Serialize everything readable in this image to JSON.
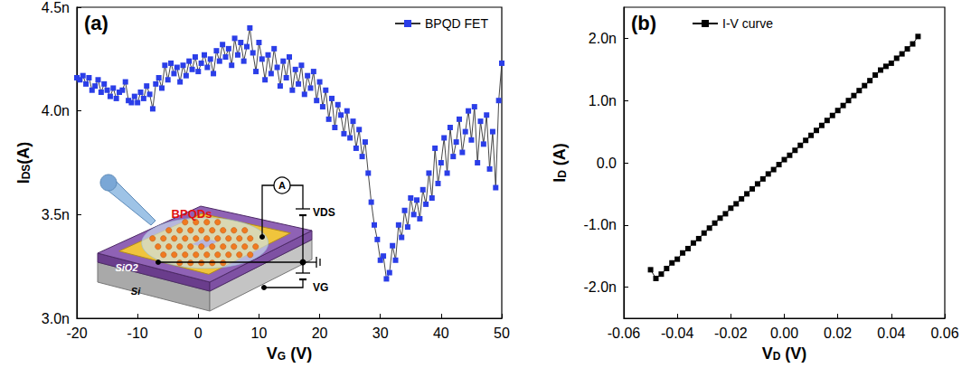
{
  "chart_data": [
    {
      "type": "line",
      "title": "(a)",
      "xlabel": [
        "V",
        "G",
        " (V)"
      ],
      "ylabel": [
        "I",
        "DS",
        "(A)"
      ],
      "x": [
        -20,
        -19.5,
        -19,
        -18.5,
        -18,
        -17.5,
        -17,
        -16.5,
        -16,
        -15.5,
        -15,
        -14.5,
        -14,
        -13.5,
        -13,
        -12.5,
        -12,
        -11.5,
        -11,
        -10.5,
        -10,
        -9.5,
        -9,
        -8.5,
        -8,
        -7.5,
        -7,
        -6.5,
        -6,
        -5.5,
        -5,
        -4.5,
        -4,
        -3.5,
        -3,
        -2.5,
        -2,
        -1.5,
        -1,
        -0.5,
        0,
        0.5,
        1,
        1.5,
        2,
        2.5,
        3,
        3.5,
        4,
        4.5,
        5,
        5.5,
        6,
        6.5,
        7,
        7.5,
        8,
        8.5,
        9,
        9.5,
        10,
        10.5,
        11,
        11.5,
        12,
        12.5,
        13,
        13.5,
        14,
        14.5,
        15,
        15.5,
        16,
        16.5,
        17,
        17.5,
        18,
        18.5,
        19,
        19.5,
        20,
        20.5,
        21,
        21.5,
        22,
        22.5,
        23,
        23.5,
        24,
        24.5,
        25,
        25.5,
        26,
        26.5,
        27,
        27.5,
        28,
        28.5,
        29,
        29.5,
        30,
        30.5,
        31,
        31.5,
        32,
        32.5,
        33,
        33.5,
        34,
        34.5,
        35,
        35.5,
        36,
        36.5,
        37,
        37.5,
        38,
        38.5,
        39,
        39.5,
        40,
        40.5,
        41,
        41.5,
        42,
        42.5,
        43,
        43.5,
        44,
        44.5,
        45,
        45.5,
        46,
        46.5,
        47,
        47.5,
        48,
        48.5,
        49,
        49.5,
        50
      ],
      "series": [
        {
          "name": "BPQD FET",
          "color": "#2b3ee8",
          "marker": "square",
          "line_style": "solid",
          "values": [
            4.16e-09,
            4.15e-09,
            4.17e-09,
            4.13e-09,
            4.16e-09,
            4.1e-09,
            4.12e-09,
            4.15e-09,
            4.09e-09,
            4.13e-09,
            4.1e-09,
            4.07e-09,
            4.11e-09,
            4.06e-09,
            4.09e-09,
            4.1e-09,
            4.14e-09,
            4.05e-09,
            4.04e-09,
            4.07e-09,
            4.04e-09,
            4.09e-09,
            4.06e-09,
            4.12e-09,
            4.08e-09,
            4.01e-09,
            4.13e-09,
            4.16e-09,
            4.11e-09,
            4.22e-09,
            4.15e-09,
            4.23e-09,
            4.18e-09,
            4.21e-09,
            4.14e-09,
            4.22e-09,
            4.17e-09,
            4.24e-09,
            4.2e-09,
            4.26e-09,
            4.19e-09,
            4.23e-09,
            4.27e-09,
            4.21e-09,
            4.25e-09,
            4.18e-09,
            4.29e-09,
            4.24e-09,
            4.32e-09,
            4.26e-09,
            4.3e-09,
            4.22e-09,
            4.35e-09,
            4.27e-09,
            4.33e-09,
            4.24e-09,
            4.31e-09,
            4.4e-09,
            4.28e-09,
            4.19e-09,
            4.33e-09,
            4.25e-09,
            4.15e-09,
            4.27e-09,
            4.18e-09,
            4.3e-09,
            4.21e-09,
            4.12e-09,
            4.24e-09,
            4.16e-09,
            4.26e-09,
            4.1e-09,
            4.2e-09,
            4.13e-09,
            4.22e-09,
            4.08e-09,
            4.17e-09,
            4.11e-09,
            4.19e-09,
            4.05e-09,
            4.14e-09,
            4.02e-09,
            4.1e-09,
            3.96e-09,
            4.06e-09,
            3.92e-09,
            4.03e-09,
            3.98e-09,
            3.89e-09,
            4e-09,
            3.87e-09,
            3.95e-09,
            3.82e-09,
            3.91e-09,
            3.78e-09,
            3.85e-09,
            3.7e-09,
            3.56e-09,
            3.45e-09,
            3.38e-09,
            3.28e-09,
            3.3e-09,
            3.19e-09,
            3.22e-09,
            3.35e-09,
            3.28e-09,
            3.45e-09,
            3.39e-09,
            3.52e-09,
            3.44e-09,
            3.58e-09,
            3.5e-09,
            3.57e-09,
            3.48e-09,
            3.62e-09,
            3.55e-09,
            3.7e-09,
            3.58e-09,
            3.82e-09,
            3.65e-09,
            3.75e-09,
            3.87e-09,
            3.7e-09,
            3.92e-09,
            3.78e-09,
            3.85e-09,
            3.96e-09,
            3.8e-09,
            3.9e-09,
            4e-09,
            3.86e-09,
            4.02e-09,
            3.75e-09,
            3.95e-09,
            3.84e-09,
            3.98e-09,
            3.72e-09,
            3.9e-09,
            3.63e-09,
            4.05e-09,
            4.23e-09
          ]
        }
      ],
      "xlim": [
        -20,
        50
      ],
      "xticks": [
        -20,
        -10,
        0,
        10,
        20,
        30,
        40,
        50
      ],
      "ylim": [
        3e-09,
        4.5e-09
      ],
      "yticks": [
        {
          "value": 3e-09,
          "label": "3.0n"
        },
        {
          "value": 3.5e-09,
          "label": "3.5n"
        },
        {
          "value": 4e-09,
          "label": "4.0n"
        },
        {
          "value": 4.5e-09,
          "label": "4.5n"
        }
      ],
      "legend": "upper right",
      "grid": false,
      "annotations": [
        "BPQDs",
        "A",
        "VDS",
        "VG",
        "SiO2",
        "Si"
      ]
    },
    {
      "type": "line",
      "title": "(b)",
      "xlabel": [
        "V",
        "D",
        " (V)"
      ],
      "ylabel": [
        "I",
        "D",
        " (A)"
      ],
      "x": [
        -0.05,
        -0.048,
        -0.046,
        -0.044,
        -0.042,
        -0.04,
        -0.038,
        -0.036,
        -0.034,
        -0.032,
        -0.03,
        -0.028,
        -0.026,
        -0.024,
        -0.022,
        -0.02,
        -0.018,
        -0.016,
        -0.014,
        -0.012,
        -0.01,
        -0.008,
        -0.006,
        -0.004,
        -0.002,
        0,
        0.002,
        0.004,
        0.006,
        0.008,
        0.01,
        0.012,
        0.014,
        0.016,
        0.018,
        0.02,
        0.022,
        0.024,
        0.026,
        0.028,
        0.03,
        0.032,
        0.034,
        0.036,
        0.038,
        0.04,
        0.042,
        0.044,
        0.046,
        0.048,
        0.05
      ],
      "series": [
        {
          "name": "I-V curve",
          "color": "#000000",
          "marker": "square",
          "line_style": "solid",
          "values": [
            -1.72e-09,
            -1.86e-09,
            -1.79e-09,
            -1.7e-09,
            -1.61e-09,
            -1.55e-09,
            -1.45e-09,
            -1.38e-09,
            -1.29e-09,
            -1.22e-09,
            -1.13e-09,
            -1.05e-09,
            -9.7e-10,
            -8.9e-10,
            -8.2e-10,
            -7.3e-10,
            -6.6e-10,
            -5.8e-10,
            -5e-10,
            -4.2e-10,
            -3.4e-10,
            -2.6e-10,
            -1.8e-10,
            -1.1e-10,
            -3e-11,
            5e-11,
            1.2e-10,
            2e-10,
            2.8e-10,
            3.6e-10,
            4.4e-10,
            5.2e-10,
            6e-10,
            6.8e-10,
            7.6e-10,
            8.4e-10,
            9.2e-10,
            1e-09,
            1.08e-09,
            1.16e-09,
            1.24e-09,
            1.32e-09,
            1.41e-09,
            1.49e-09,
            1.55e-09,
            1.6e-09,
            1.68e-09,
            1.75e-09,
            1.83e-09,
            1.91e-09,
            2.03e-09
          ]
        }
      ],
      "xlim": [
        -0.06,
        0.06
      ],
      "xticks": [
        -0.06,
        -0.04,
        -0.02,
        {
          "value": 0,
          "label": "0.00"
        },
        0.02,
        0.04,
        0.06
      ],
      "ylim": [
        -2.5e-09,
        2.5e-09
      ],
      "yticks": [
        {
          "value": -2e-09,
          "label": "-2.0n"
        },
        {
          "value": -1e-09,
          "label": "-1.0n"
        },
        {
          "value": 0,
          "label": "0.0"
        },
        {
          "value": 1e-09,
          "label": "1.0n"
        },
        {
          "value": 2e-09,
          "label": "2.0n"
        }
      ],
      "legend": "upper left",
      "grid": false
    }
  ]
}
